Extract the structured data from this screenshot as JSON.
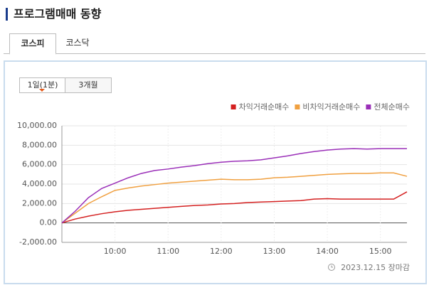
{
  "header": {
    "title": "프로그램매매 동향"
  },
  "market_tabs": [
    "코스피",
    "코스닥"
  ],
  "period_tabs": [
    "1일(1분)",
    "3개월"
  ],
  "footer": "2023.12.15 장마감",
  "chart_data": {
    "type": "line",
    "x": [
      0,
      15,
      30,
      45,
      60,
      75,
      90,
      105,
      120,
      135,
      150,
      165,
      180,
      195,
      210,
      225,
      240,
      255,
      270,
      285,
      300,
      315,
      330,
      345,
      360,
      375,
      390
    ],
    "series": [
      {
        "name": "차익거래순매수",
        "color": "#d42020",
        "values": [
          0,
          400,
          700,
          950,
          1150,
          1300,
          1400,
          1500,
          1600,
          1700,
          1800,
          1850,
          1950,
          2000,
          2100,
          2150,
          2200,
          2250,
          2300,
          2450,
          2500,
          2450,
          2450,
          2450,
          2450,
          2450,
          3200
        ]
      },
      {
        "name": "비차익거래순매수",
        "color": "#f0a040",
        "values": [
          0,
          1000,
          2000,
          2700,
          3350,
          3600,
          3800,
          3950,
          4100,
          4200,
          4300,
          4400,
          4500,
          4450,
          4450,
          4500,
          4650,
          4700,
          4800,
          4900,
          5000,
          5050,
          5100,
          5100,
          5150,
          5150,
          4800
        ]
      },
      {
        "name": "전체순매수",
        "color": "#9a2fb8",
        "values": [
          0,
          1200,
          2600,
          3550,
          4100,
          4650,
          5100,
          5400,
          5550,
          5750,
          5900,
          6100,
          6250,
          6350,
          6400,
          6500,
          6700,
          6900,
          7150,
          7350,
          7500,
          7600,
          7650,
          7600,
          7650,
          7650,
          7650
        ]
      }
    ],
    "xlim": [
      0,
      390
    ],
    "xticks": [
      {
        "value": 60,
        "label": "10:00"
      },
      {
        "value": 120,
        "label": "11:00"
      },
      {
        "value": 180,
        "label": "12:00"
      },
      {
        "value": 240,
        "label": "13:00"
      },
      {
        "value": 300,
        "label": "14:00"
      },
      {
        "value": 360,
        "label": "15:00"
      }
    ],
    "ylim": [
      -2000,
      10000
    ],
    "yticks": [
      {
        "value": -2000,
        "label": "-2,000.00"
      },
      {
        "value": 0,
        "label": "0.00"
      },
      {
        "value": 2000,
        "label": "2,000.00"
      },
      {
        "value": 4000,
        "label": "4,000.00"
      },
      {
        "value": 6000,
        "label": "6,000.00"
      },
      {
        "value": 8000,
        "label": "8,000.00"
      },
      {
        "value": 10000,
        "label": "10,000.00"
      }
    ],
    "grid": true,
    "legend": "top-right"
  }
}
